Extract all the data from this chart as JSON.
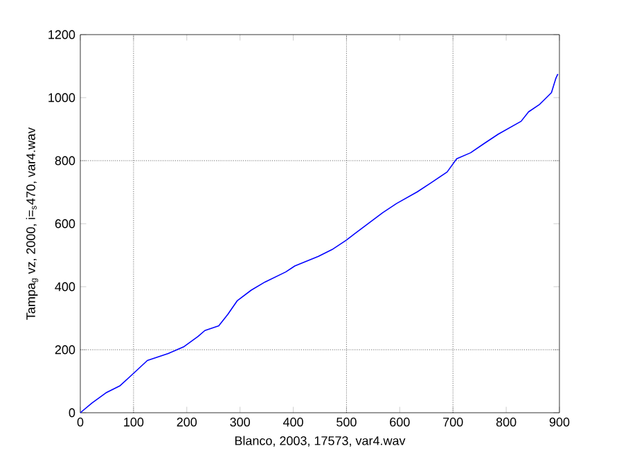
{
  "chart_data": {
    "type": "line",
    "xlabel": "Blanco, 2003, 17573, var4.wav",
    "ylabel": "Tampa$_{g}$ vz, 2000, i=$_{s}$470, var4.wav",
    "xlim": [
      0,
      900
    ],
    "ylim": [
      0,
      1200
    ],
    "xticks": [
      0,
      100,
      200,
      300,
      400,
      500,
      600,
      700,
      800,
      900
    ],
    "yticks": [
      0,
      200,
      400,
      600,
      800,
      1000,
      1200
    ],
    "grid": false,
    "marker": "none",
    "line_style": "solid",
    "ref_lines": [
      {
        "axis": "x",
        "value": 100,
        "line_style": "dotted"
      },
      {
        "axis": "x",
        "value": 500,
        "line_style": "dotted"
      },
      {
        "axis": "x",
        "value": 700,
        "line_style": "dotted"
      },
      {
        "axis": "y",
        "value": 200,
        "line_style": "dotted"
      },
      {
        "axis": "y",
        "value": 800,
        "line_style": "dotted"
      }
    ],
    "series": [
      {
        "color": "#0000ff",
        "x": [
          0,
          22,
          48,
          74,
          98,
          126,
          165,
          195,
          221,
          234,
          260,
          277,
          295,
          321,
          347,
          386,
          403,
          447,
          473,
          499,
          516,
          568,
          594,
          633,
          659,
          689,
          707,
          733,
          759,
          785,
          828,
          842,
          863,
          885,
          893,
          897
        ],
        "values": [
          0,
          31,
          63,
          85,
          122,
          166,
          188,
          210,
          242,
          261,
          276,
          312,
          356,
          389,
          415,
          447,
          466,
          496,
          518,
          547,
          569,
          635,
          664,
          701,
          730,
          764,
          806,
          825,
          855,
          884,
          925,
          955,
          979,
          1016,
          1060,
          1075
        ]
      }
    ]
  }
}
